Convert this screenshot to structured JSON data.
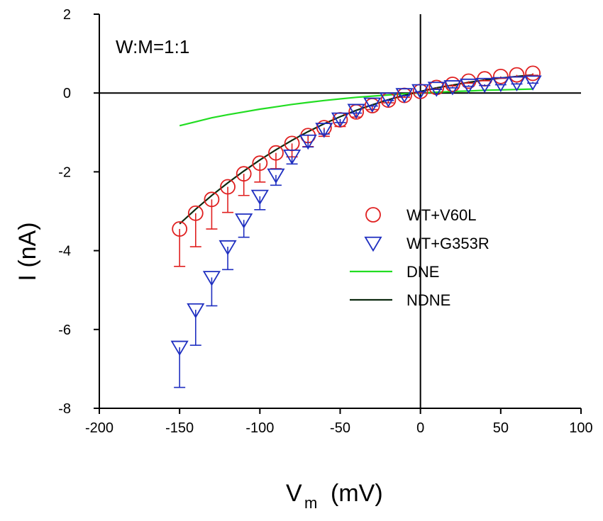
{
  "chart_data": {
    "type": "scatter",
    "annotation": "W:M=1:1",
    "xlabel_main": "V",
    "xlabel_sub": "m",
    "xlabel_unit": "(mV)",
    "ylabel": "I (nA)",
    "xlim": [
      -200,
      100
    ],
    "ylim": [
      -8,
      2
    ],
    "xticks": [
      -200,
      -150,
      -100,
      -50,
      0,
      50,
      100
    ],
    "yticks": [
      2,
      0,
      -2,
      -4,
      -6,
      -8
    ],
    "xtick_labels": [
      "-200",
      "-150",
      "-100",
      "-50",
      "0",
      "50",
      "100"
    ],
    "ytick_labels": [
      "2",
      "0",
      "-2",
      "-4",
      "-6",
      "-8"
    ],
    "legend_position": "center-right",
    "series": [
      {
        "name": "WT+V60L",
        "marker": "circle",
        "color": "#e02020",
        "x": [
          -150,
          -140,
          -130,
          -120,
          -110,
          -100,
          -90,
          -80,
          -70,
          -60,
          -50,
          -40,
          -30,
          -20,
          -10,
          0,
          10,
          20,
          30,
          40,
          50,
          60,
          70
        ],
        "y": [
          -3.45,
          -3.05,
          -2.7,
          -2.38,
          -2.05,
          -1.78,
          -1.52,
          -1.28,
          -1.08,
          -0.88,
          -0.68,
          -0.48,
          -0.32,
          -0.18,
          -0.06,
          0.04,
          0.14,
          0.22,
          0.3,
          0.36,
          0.42,
          0.46,
          0.5
        ],
        "err": [
          0.95,
          0.85,
          0.75,
          0.65,
          0.55,
          0.48,
          0.4,
          0.34,
          0.28,
          0.22,
          0.17,
          0.13,
          0.1,
          0.07,
          0.05,
          0.04,
          0.04,
          0.04,
          0.05,
          0.05,
          0.05,
          0.05,
          0.05
        ]
      },
      {
        "name": "WT+G353R",
        "marker": "triangle-down",
        "color": "#1f2fc0",
        "x": [
          -150,
          -140,
          -130,
          -120,
          -110,
          -100,
          -90,
          -80,
          -70,
          -60,
          -50,
          -40,
          -30,
          -20,
          -10,
          0,
          10,
          20,
          30,
          40,
          50,
          60,
          70
        ],
        "y": [
          -6.45,
          -5.5,
          -4.68,
          -3.9,
          -3.22,
          -2.62,
          -2.08,
          -1.6,
          -1.22,
          -0.92,
          -0.66,
          -0.44,
          -0.28,
          -0.15,
          -0.04,
          0.06,
          0.12,
          0.16,
          0.2,
          0.22,
          0.24,
          0.26,
          0.28
        ],
        "err": [
          1.02,
          0.9,
          0.72,
          0.58,
          0.44,
          0.34,
          0.26,
          0.2,
          0.15,
          0.12,
          0.09,
          0.07,
          0.05,
          0.04,
          0.03,
          0.03,
          0.03,
          0.03,
          0.03,
          0.03,
          0.03,
          0.03,
          0.03
        ]
      },
      {
        "name": "DNE",
        "marker": "line",
        "color": "#22dd22",
        "x": [
          -150,
          -140,
          -130,
          -120,
          -110,
          -100,
          -90,
          -80,
          -70,
          -60,
          -50,
          -40,
          -30,
          -20,
          -10,
          0,
          10,
          20,
          30,
          40,
          50,
          60,
          70
        ],
        "y": [
          -0.83,
          -0.73,
          -0.63,
          -0.55,
          -0.48,
          -0.41,
          -0.35,
          -0.29,
          -0.24,
          -0.19,
          -0.15,
          -0.11,
          -0.08,
          -0.05,
          -0.02,
          0.0,
          0.02,
          0.04,
          0.05,
          0.07,
          0.08,
          0.09,
          0.1
        ]
      },
      {
        "name": "NDNE",
        "marker": "line",
        "color": "#0d2a10",
        "x": [
          -150,
          -140,
          -130,
          -120,
          -110,
          -100,
          -90,
          -80,
          -70,
          -60,
          -50,
          -40,
          -30,
          -20,
          -10,
          0,
          10,
          20,
          30,
          40,
          50,
          60,
          70
        ],
        "y": [
          -3.32,
          -2.95,
          -2.6,
          -2.28,
          -1.98,
          -1.7,
          -1.44,
          -1.2,
          -0.98,
          -0.78,
          -0.6,
          -0.44,
          -0.3,
          -0.17,
          -0.06,
          0.04,
          0.13,
          0.2,
          0.27,
          0.33,
          0.38,
          0.42,
          0.46
        ]
      }
    ]
  }
}
